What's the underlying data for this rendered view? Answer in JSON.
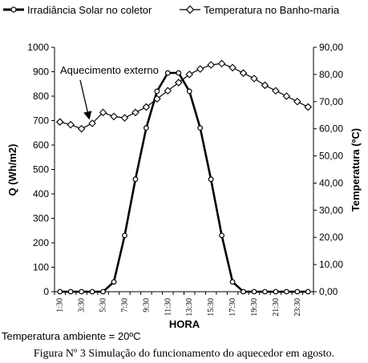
{
  "chart_data": {
    "type": "line",
    "x": [
      "1:30",
      "2:30",
      "3:30",
      "4:30",
      "5:30",
      "6:30",
      "7:30",
      "8:30",
      "9:30",
      "10:30",
      "11:30",
      "12:30",
      "13:30",
      "14:30",
      "15:30",
      "16:30",
      "17:30",
      "18:30",
      "19:30",
      "20:30",
      "21:30",
      "22:30",
      "23:30",
      "0:30"
    ],
    "x_tick_labels": [
      "1:30",
      "3:30",
      "5:30",
      "7:30",
      "9:30",
      "11:30",
      "13:30",
      "15:30",
      "17:30",
      "19:30",
      "21:30",
      "23:30"
    ],
    "series": [
      {
        "name": "Irradiância Solar no coletor",
        "axis": "left",
        "marker": "circle",
        "values": [
          0,
          0,
          0,
          0,
          0,
          40,
          230,
          460,
          670,
          820,
          895,
          895,
          820,
          670,
          460,
          230,
          40,
          0,
          0,
          0,
          0,
          0,
          0,
          0
        ]
      },
      {
        "name": "Temperatura no Banho-maria",
        "axis": "right",
        "marker": "diamond",
        "values": [
          62.5,
          61.5,
          60,
          62,
          66,
          64.5,
          64,
          66,
          68,
          71,
          74,
          77,
          80,
          82,
          83.5,
          84,
          82.5,
          80.5,
          78.5,
          76,
          74,
          72,
          70,
          68
        ]
      }
    ],
    "xlabel": "HORA",
    "ylabel": "Q (Wh/m2)",
    "ylabel_right": "Temperatura (ºC)",
    "ylim": [
      0,
      1000
    ],
    "ylim_right": [
      0,
      90
    ],
    "yticks": [
      "0",
      "100",
      "200",
      "300",
      "400",
      "500",
      "600",
      "700",
      "800",
      "900",
      "1000"
    ],
    "yticks_right": [
      "0,00",
      "10,00",
      "20,00",
      "30,00",
      "40,00",
      "50,00",
      "60,00",
      "70,00",
      "80,00",
      "90,00"
    ],
    "grid": false,
    "legend_position": "top",
    "annotation": "Aquecimento externo"
  },
  "note": "Temperatura ambiente = 20ºC",
  "caption": "Figura Nº 3 Simulação do funcionamento do aquecedor em agosto."
}
